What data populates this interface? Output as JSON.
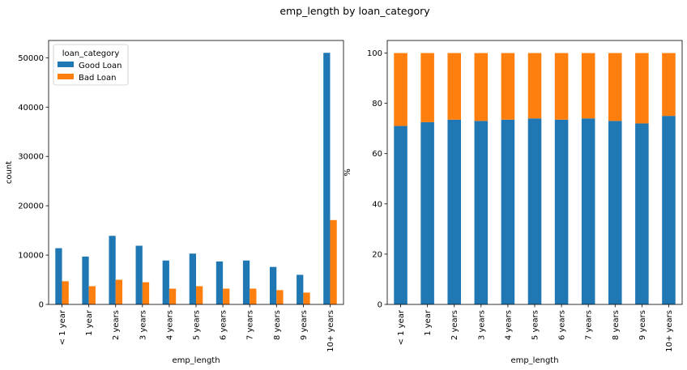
{
  "figure_title": "emp_length by loan_category",
  "colors": {
    "good": "#1f77b4",
    "bad": "#ff7f0e"
  },
  "chart_data": [
    {
      "type": "bar",
      "xlabel": "emp_length",
      "ylabel": "count",
      "ylim": [
        0,
        53500
      ],
      "yticks": [
        0,
        10000,
        20000,
        30000,
        40000,
        50000
      ],
      "ytick_labels": [
        "0",
        "10000",
        "20000",
        "30000",
        "40000",
        "50000"
      ],
      "categories": [
        "< 1 year",
        "1 year",
        "2 years",
        "3 years",
        "4 years",
        "5 years",
        "6 years",
        "7 years",
        "8 years",
        "9 years",
        "10+ years"
      ],
      "legend": {
        "title": "loan_category",
        "location": "top-left"
      },
      "series": [
        {
          "name": "Good Loan",
          "values": [
            11400,
            9700,
            13900,
            11900,
            8900,
            10300,
            8700,
            8900,
            7600,
            6000,
            51000
          ]
        },
        {
          "name": "Bad Loan",
          "values": [
            4700,
            3700,
            5000,
            4500,
            3200,
            3700,
            3200,
            3200,
            2900,
            2400,
            17100
          ]
        }
      ]
    },
    {
      "type": "bar",
      "stacked": true,
      "xlabel": "emp_length",
      "ylabel": "%",
      "ylim": [
        0,
        105
      ],
      "yticks": [
        0,
        20,
        40,
        60,
        80,
        100
      ],
      "ytick_labels": [
        "0",
        "20",
        "40",
        "60",
        "80",
        "100"
      ],
      "categories": [
        "< 1 year",
        "1 year",
        "2 years",
        "3 years",
        "4 years",
        "5 years",
        "6 years",
        "7 years",
        "8 years",
        "9 years",
        "10+ years"
      ],
      "series": [
        {
          "name": "Good Loan",
          "values": [
            71,
            72.5,
            73.5,
            73,
            73.5,
            74,
            73.5,
            74,
            73,
            72,
            75
          ]
        },
        {
          "name": "Bad Loan",
          "values": [
            29,
            27.5,
            26.5,
            27,
            26.5,
            26,
            26.5,
            26,
            27,
            28,
            25
          ]
        }
      ]
    }
  ]
}
